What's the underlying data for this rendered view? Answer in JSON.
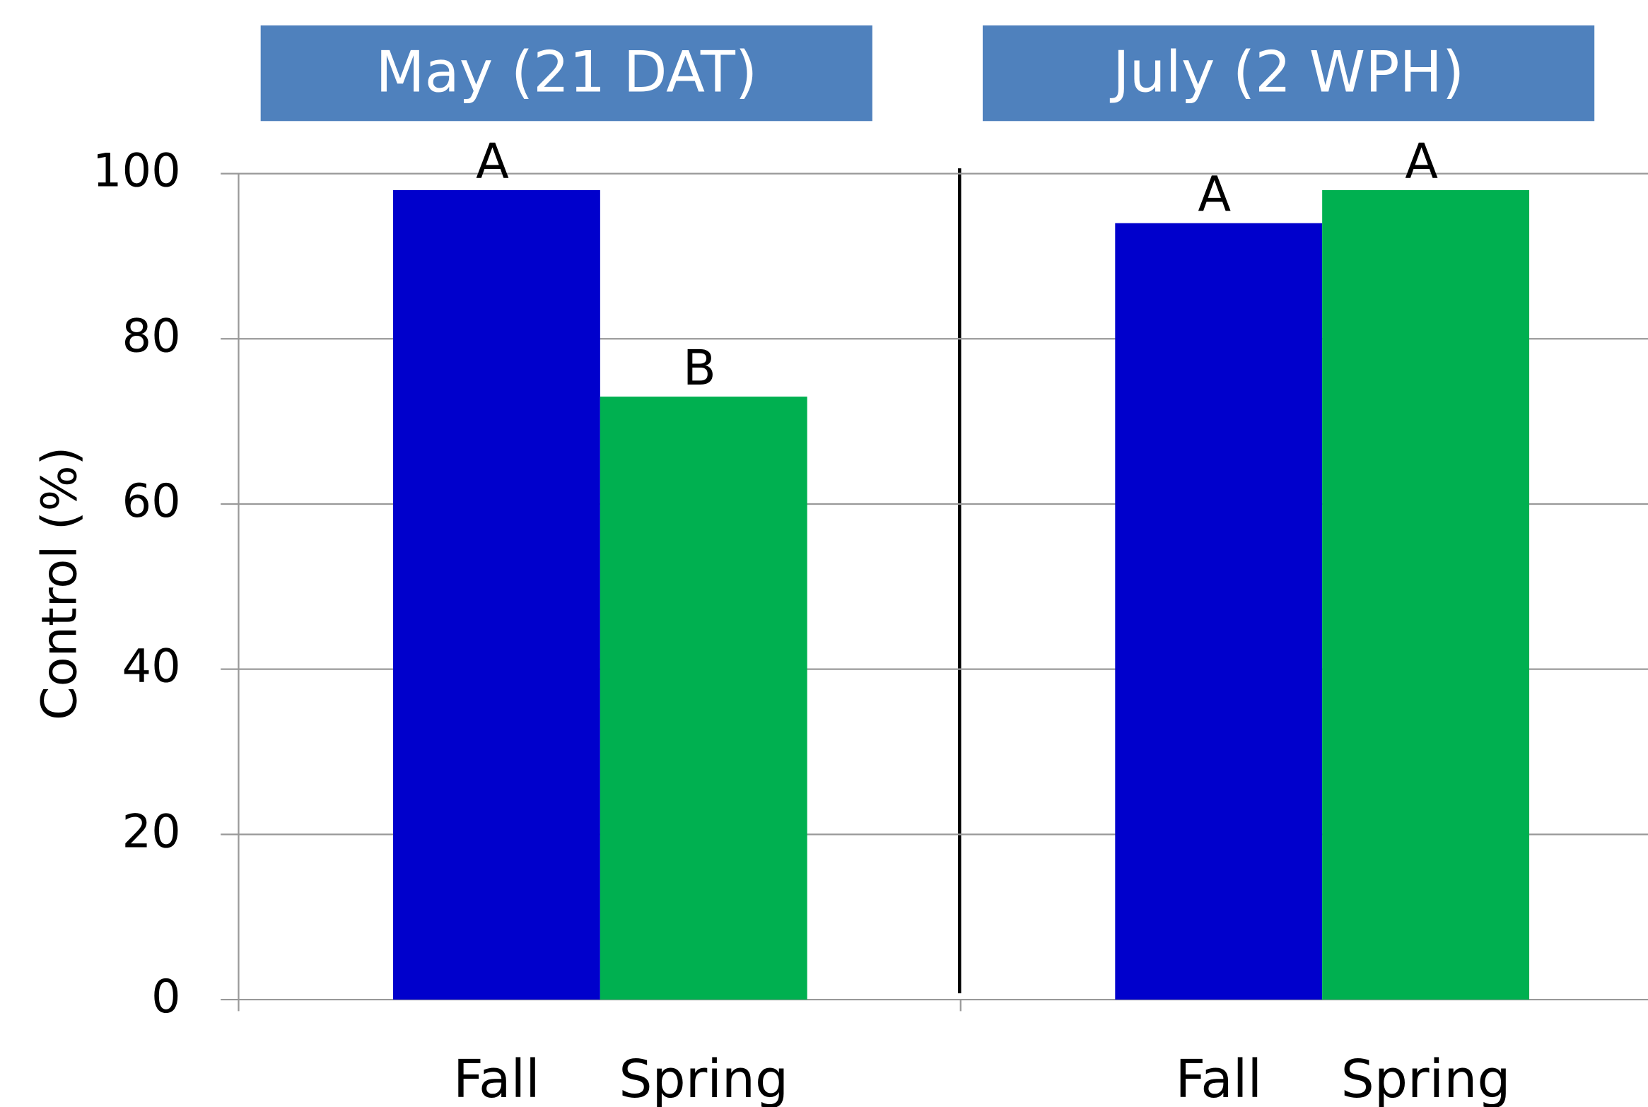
{
  "chart_data": {
    "type": "bar",
    "ylabel": "Control (%)",
    "groups": [
      "May (21 DAT)",
      "July (2 WPH)"
    ],
    "series": [
      {
        "name": "Fall",
        "color": "#0000cc",
        "values": [
          98,
          94
        ],
        "letters": [
          "A",
          "A"
        ]
      },
      {
        "name": "Spring",
        "color": "#00b050",
        "values": [
          73,
          98
        ],
        "letters": [
          "B",
          "A"
        ]
      }
    ],
    "ylim": [
      0,
      100
    ],
    "yticks": [
      0,
      20,
      40,
      60,
      80,
      100
    ],
    "grid": true,
    "header_color": "#4f81bd"
  }
}
